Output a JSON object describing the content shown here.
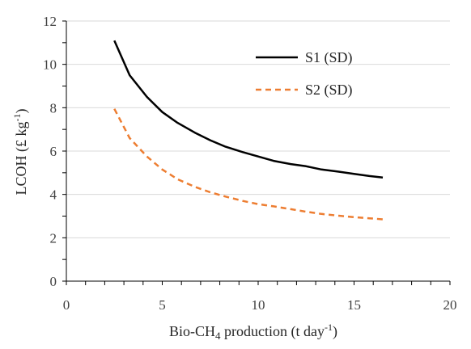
{
  "chart_data": {
    "type": "line",
    "xlabel": {
      "pre": "Bio-CH",
      "sub": "4",
      "post": " production (t day",
      "sup": "-1",
      "end": ")"
    },
    "ylabel": {
      "pre": "LCOH (£ kg",
      "sup": "-1",
      "end": ")"
    },
    "xlim": [
      0,
      20
    ],
    "ylim": [
      0,
      12
    ],
    "xticks": [
      0,
      5,
      10,
      15,
      20
    ],
    "yticks": [
      0,
      2,
      4,
      6,
      8,
      10,
      12
    ],
    "grid": "horizontal",
    "legend_position": "top-right",
    "series": [
      {
        "name": "S1 (SD)",
        "color": "#000000",
        "dash": "solid",
        "x": [
          2.5,
          3.3,
          4.2,
          5.0,
          5.8,
          6.7,
          7.5,
          8.3,
          9.2,
          10.0,
          10.8,
          11.7,
          12.5,
          13.3,
          14.2,
          15.0,
          15.8,
          16.5
        ],
        "y": [
          11.1,
          9.5,
          8.5,
          7.8,
          7.3,
          6.85,
          6.5,
          6.2,
          5.95,
          5.75,
          5.55,
          5.4,
          5.3,
          5.15,
          5.05,
          4.95,
          4.85,
          4.78
        ]
      },
      {
        "name": "S2 (SD)",
        "color": "#ED7D31",
        "dash": "dashed",
        "x": [
          2.5,
          3.3,
          4.2,
          5.0,
          5.8,
          6.7,
          7.5,
          8.3,
          9.2,
          10.0,
          10.8,
          11.7,
          12.5,
          13.3,
          14.2,
          15.0,
          15.8,
          16.5
        ],
        "y": [
          7.95,
          6.6,
          5.75,
          5.15,
          4.7,
          4.35,
          4.1,
          3.9,
          3.7,
          3.55,
          3.45,
          3.32,
          3.2,
          3.1,
          3.02,
          2.95,
          2.9,
          2.85
        ]
      }
    ]
  }
}
